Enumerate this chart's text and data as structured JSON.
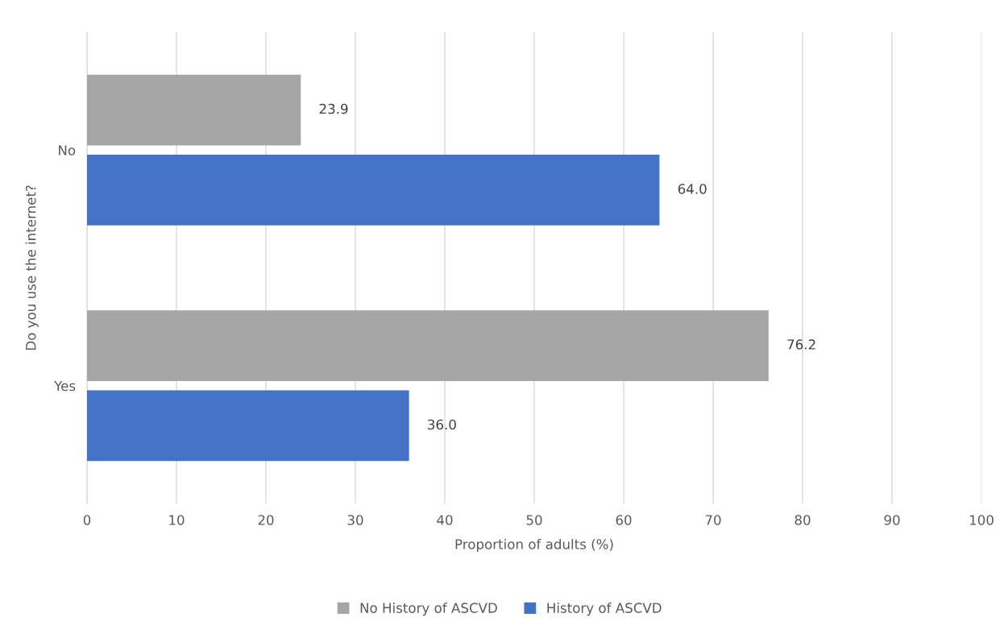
{
  "chart_data": {
    "type": "bar",
    "orientation": "horizontal",
    "xlabel": "Proportion of adults (%)",
    "ylabel": "Do you use the internet?",
    "categories": [
      "No",
      "Yes"
    ],
    "series": [
      {
        "name": "No History of ASCVD",
        "color": "#a5a5a5",
        "values": [
          23.9,
          76.2
        ],
        "value_labels": [
          "23.9",
          "76.2"
        ]
      },
      {
        "name": "History of ASCVD",
        "color": "#4472c4",
        "values": [
          64.0,
          36.0
        ],
        "value_labels": [
          "64.0",
          "36.0"
        ]
      }
    ],
    "xlim": [
      0,
      100
    ],
    "xticks": [
      0,
      10,
      20,
      30,
      40,
      50,
      60,
      70,
      80,
      90,
      100
    ],
    "grid": "x",
    "legend": "bottom"
  }
}
